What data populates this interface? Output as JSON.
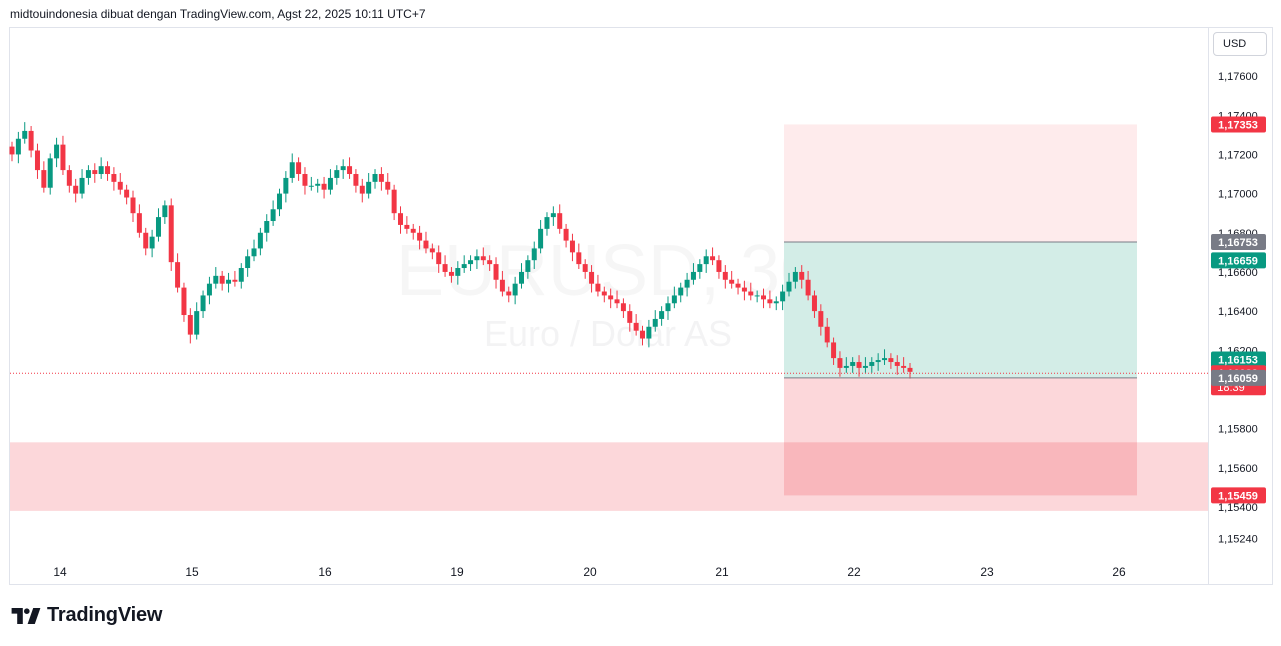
{
  "header": {
    "text": "midtouindonesia dibuat dengan TradingView.com, Agst 22, 2025 10:11 UTC+7"
  },
  "axis": {
    "currency_label": "USD"
  },
  "watermark": {
    "symbol": "EURUSD, 30",
    "name": "Euro / Dolar AS"
  },
  "brand": {
    "name": "TradingView"
  },
  "colors": {
    "up": "#089981",
    "down": "#f23645",
    "grid": "#e0e3eb",
    "target_zone": "#d3ede7",
    "stop_zone": "#f9d4d7",
    "text": "#131722"
  },
  "chart_data": {
    "type": "candlestick",
    "symbol": "EURUSD",
    "interval": "30",
    "ylim": [
      1.1517,
      1.1782
    ],
    "y_ticks": [
      "1,17600",
      "1,17400",
      "1,17200",
      "1,17000",
      "1,16800",
      "1,16600",
      "1,16400",
      "1,16200",
      "1,15800",
      "1,15600",
      "1,15400",
      "1,15240"
    ],
    "x_ticks": [
      "14",
      "15",
      "16",
      "19",
      "20",
      "21",
      "22",
      "23",
      "26"
    ],
    "price_labels": [
      {
        "value": "1,17353",
        "style": "red"
      },
      {
        "value": "1,16753",
        "style": "gray"
      },
      {
        "value": "1,16659",
        "style": "green"
      },
      {
        "value": "1,16153",
        "style": "green"
      },
      {
        "value": "1,16083",
        "sub": "18:39",
        "style": "red"
      },
      {
        "value": "1,16059",
        "style": "gray"
      },
      {
        "value": "1,15459",
        "style": "red"
      }
    ],
    "current_price": 1.16083,
    "zones": [
      {
        "kind": "demand_zone",
        "from": 1.1538,
        "to": 1.1573
      },
      {
        "kind": "stop_extension",
        "from": 1.16753,
        "to": 1.17353
      },
      {
        "kind": "target",
        "from": 1.16059,
        "to": 1.16753
      },
      {
        "kind": "stop",
        "from": 1.15459,
        "to": 1.16059
      }
    ],
    "closes": [
      1.172,
      1.1728,
      1.1732,
      1.1722,
      1.1712,
      1.1703,
      1.1718,
      1.1725,
      1.1712,
      1.1704,
      1.17,
      1.1708,
      1.1712,
      1.171,
      1.1714,
      1.171,
      1.1706,
      1.1702,
      1.1698,
      1.169,
      1.168,
      1.1672,
      1.1678,
      1.1688,
      1.1694,
      1.1665,
      1.1652,
      1.1638,
      1.1628,
      1.164,
      1.1648,
      1.1654,
      1.1658,
      1.1654,
      1.1656,
      1.1655,
      1.1662,
      1.1668,
      1.1672,
      1.168,
      1.1686,
      1.1692,
      1.17,
      1.1708,
      1.1716,
      1.171,
      1.1704,
      1.1704,
      1.1705,
      1.1702,
      1.1708,
      1.1712,
      1.1714,
      1.171,
      1.1704,
      1.17,
      1.1706,
      1.171,
      1.1706,
      1.1702,
      1.169,
      1.1684,
      1.1682,
      1.168,
      1.1676,
      1.1672,
      1.167,
      1.1664,
      1.166,
      1.1658,
      1.1662,
      1.1664,
      1.1666,
      1.1668,
      1.1666,
      1.1664,
      1.1656,
      1.165,
      1.1648,
      1.1654,
      1.166,
      1.1666,
      1.1672,
      1.1682,
      1.1688,
      1.169,
      1.1682,
      1.1676,
      1.167,
      1.1664,
      1.166,
      1.1654,
      1.165,
      1.1648,
      1.1646,
      1.1644,
      1.164,
      1.1634,
      1.163,
      1.1626,
      1.1632,
      1.1636,
      1.164,
      1.1644,
      1.1648,
      1.1652,
      1.1656,
      1.166,
      1.1664,
      1.1668,
      1.1666,
      1.166,
      1.1656,
      1.1654,
      1.1652,
      1.165,
      1.1648,
      1.1648,
      1.1646,
      1.1644,
      1.1645,
      1.165,
      1.1655,
      1.166,
      1.1656,
      1.1648,
      1.164,
      1.1632,
      1.1624,
      1.1616,
      1.1611,
      1.1612,
      1.1614,
      1.1611,
      1.1612,
      1.1614,
      1.1615,
      1.1616,
      1.1614,
      1.1612,
      1.1611,
      1.1609
    ]
  }
}
